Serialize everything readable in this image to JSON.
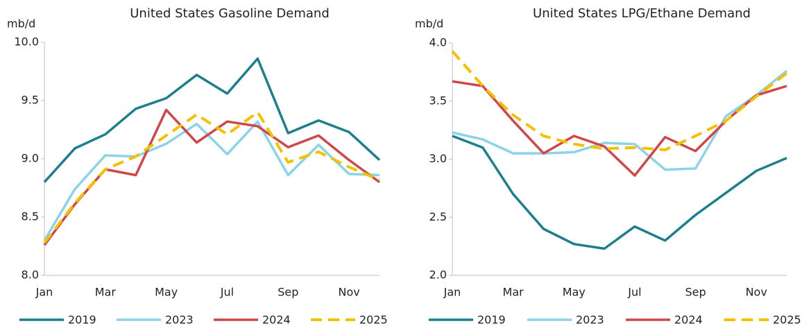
{
  "chart_data": [
    {
      "type": "line",
      "title": "United States Gasoline Demand",
      "y_label": "mb/d",
      "categories": [
        "Jan",
        null,
        "Mar",
        null,
        "May",
        null,
        "Jul",
        null,
        "Sep",
        null,
        "Nov",
        null
      ],
      "ylim": [
        8,
        10
      ],
      "yticks": [
        {
          "value": 8,
          "label": "8.0"
        },
        {
          "value": 8.5,
          "label": "8.5"
        },
        {
          "value": 9,
          "label": "9.0"
        },
        {
          "value": 9.5,
          "label": "9.5"
        },
        {
          "value": 10,
          "label": "10.0"
        }
      ],
      "legend": "bottom",
      "series": [
        {
          "name": "2019",
          "color": "#1b7f8f",
          "dashed": false,
          "values": [
            8.8,
            9.09,
            9.21,
            9.43,
            9.52,
            9.72,
            9.56,
            9.86,
            9.22,
            9.33,
            9.23,
            8.99
          ]
        },
        {
          "name": "2023",
          "color": "#8dd3e8",
          "dashed": false,
          "values": [
            8.3,
            8.74,
            9.03,
            9.02,
            9.13,
            9.3,
            9.04,
            9.32,
            8.86,
            9.12,
            8.87,
            8.86
          ]
        },
        {
          "name": "2024",
          "color": "#d0474a",
          "dashed": false,
          "values": [
            8.26,
            8.61,
            8.91,
            8.86,
            9.42,
            9.14,
            9.32,
            9.28,
            9.1,
            9.2,
            8.99,
            8.8
          ]
        },
        {
          "name": "2025",
          "color": "#f5c000",
          "dashed": true,
          "values": [
            8.28,
            8.62,
            8.91,
            9.02,
            9.2,
            9.38,
            9.21,
            9.4,
            8.97,
            9.06,
            8.93,
            8.82
          ]
        }
      ]
    },
    {
      "type": "line",
      "title": "United States LPG/Ethane Demand",
      "y_label": "mb/d",
      "categories": [
        "Jan",
        null,
        "Mar",
        null,
        "May",
        null,
        "Jul",
        null,
        "Sep",
        null,
        "Nov",
        null
      ],
      "ylim": [
        2,
        4
      ],
      "yticks": [
        {
          "value": 2,
          "label": "2.0"
        },
        {
          "value": 2.5,
          "label": "2.5"
        },
        {
          "value": 3,
          "label": "3.0"
        },
        {
          "value": 3.5,
          "label": "3.5"
        },
        {
          "value": 4,
          "label": "4.0"
        }
      ],
      "legend": "bottom",
      "series": [
        {
          "name": "2019",
          "color": "#1b7f8f",
          "dashed": false,
          "values": [
            3.2,
            3.1,
            2.7,
            2.4,
            2.27,
            2.23,
            2.42,
            2.3,
            2.52,
            2.71,
            2.9,
            3.01
          ]
        },
        {
          "name": "2023",
          "color": "#8dd3e8",
          "dashed": false,
          "values": [
            3.23,
            3.17,
            3.05,
            3.05,
            3.06,
            3.14,
            3.13,
            2.91,
            2.92,
            3.37,
            3.55,
            3.76
          ]
        },
        {
          "name": "2024",
          "color": "#d0474a",
          "dashed": false,
          "values": [
            3.67,
            3.63,
            3.33,
            3.05,
            3.2,
            3.11,
            2.86,
            3.19,
            3.07,
            3.33,
            3.55,
            3.63
          ]
        },
        {
          "name": "2025",
          "color": "#f5c000",
          "dashed": true,
          "values": [
            3.93,
            3.63,
            3.38,
            3.2,
            3.13,
            3.09,
            3.1,
            3.08,
            3.2,
            3.33,
            3.54,
            3.74
          ]
        }
      ]
    }
  ]
}
